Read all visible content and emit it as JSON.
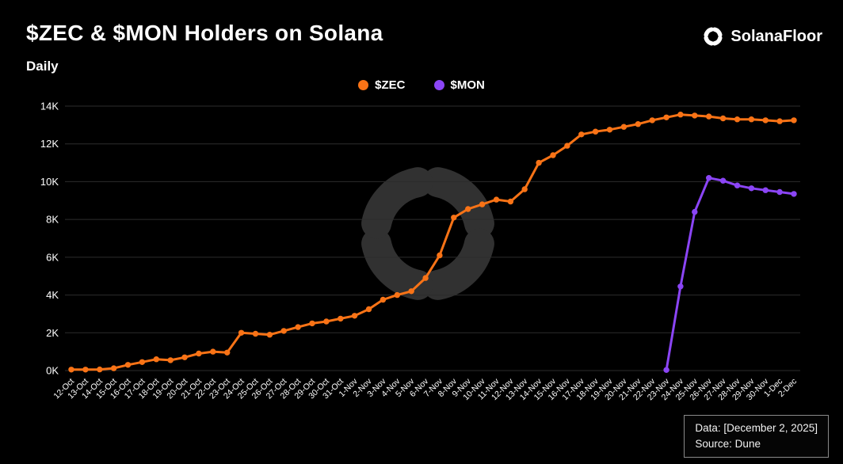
{
  "header": {
    "title": "$ZEC & $MON Holders on Solana",
    "subtitle": "Daily",
    "brand": "SolanaFloor"
  },
  "legend": [
    {
      "label": "$ZEC",
      "color": "#f97316"
    },
    {
      "label": "$MON",
      "color": "#8b45f6"
    }
  ],
  "footer": {
    "data_label": "Data: [December 2, 2025]",
    "source_label": "Source: Dune"
  },
  "chart_data": {
    "type": "line",
    "title": "$ZEC & $MON Holders on Solana",
    "subtitle": "Daily",
    "xlabel": "",
    "ylabel": "",
    "ylim": [
      0,
      14000
    ],
    "grid": true,
    "grid_color": "#2c2c2c",
    "legend_position": "top",
    "ytick_values": [
      0,
      2000,
      4000,
      6000,
      8000,
      10000,
      12000,
      14000
    ],
    "ytick_labels": [
      "0K",
      "2K",
      "4K",
      "6K",
      "8K",
      "10K",
      "12K",
      "14K"
    ],
    "categories": [
      "12-Oct",
      "13-Oct",
      "14-Oct",
      "15-Oct",
      "16-Oct",
      "17-Oct",
      "18-Oct",
      "19-Oct",
      "20-Oct",
      "21-Oct",
      "22-Oct",
      "23-Oct",
      "24-Oct",
      "25-Oct",
      "26-Oct",
      "27-Oct",
      "28-Oct",
      "29-Oct",
      "30-Oct",
      "31-Oct",
      "1-Nov",
      "2-Nov",
      "3-Nov",
      "4-Nov",
      "5-Nov",
      "6-Nov",
      "7-Nov",
      "8-Nov",
      "9-Nov",
      "10-Nov",
      "11-Nov",
      "12-Nov",
      "13-Nov",
      "14-Nov",
      "15-Nov",
      "16-Nov",
      "17-Nov",
      "18-Nov",
      "19-Nov",
      "20-Nov",
      "21-Nov",
      "22-Nov",
      "23-Nov",
      "24-Nov",
      "25-Nov",
      "26-Nov",
      "27-Nov",
      "28-Nov",
      "29-Nov",
      "30-Nov",
      "1-Dec",
      "2-Dec"
    ],
    "series": [
      {
        "name": "$ZEC",
        "color": "#f97316",
        "values": [
          50,
          50,
          60,
          120,
          300,
          450,
          600,
          550,
          700,
          900,
          1000,
          950,
          2000,
          1950,
          1900,
          2100,
          2300,
          2500,
          2600,
          2750,
          2900,
          3250,
          3750,
          4000,
          4200,
          4900,
          6100,
          8100,
          8550,
          8800,
          9050,
          8950,
          9600,
          11000,
          11400,
          11900,
          12500,
          12650,
          12750,
          12900,
          13050,
          13250,
          13400,
          13550,
          13500,
          13450,
          13350,
          13300,
          13300,
          13250,
          13200,
          13250
        ]
      },
      {
        "name": "$MON",
        "color": "#8b45f6",
        "values": [
          null,
          null,
          null,
          null,
          null,
          null,
          null,
          null,
          null,
          null,
          null,
          null,
          null,
          null,
          null,
          null,
          null,
          null,
          null,
          null,
          null,
          null,
          null,
          null,
          null,
          null,
          null,
          null,
          null,
          null,
          null,
          null,
          null,
          null,
          null,
          null,
          null,
          null,
          null,
          null,
          null,
          null,
          30,
          4450,
          8400,
          10200,
          10050,
          9800,
          9650,
          9550,
          9450,
          9350
        ]
      }
    ]
  }
}
